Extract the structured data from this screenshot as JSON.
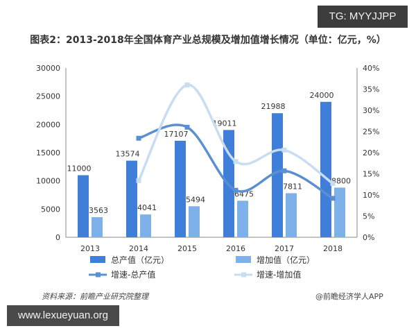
{
  "header": {
    "tag": "TG: MYYJJPP"
  },
  "footer": {
    "source": "资料来源：前瞻产业研究院整理",
    "brand": "@前瞻经济学人APP",
    "watermark": "www.lexueyuan.org"
  },
  "colors": {
    "bar_total": "#3f7fd9",
    "bar_added": "#7eb0ea",
    "line_total": "#5b8fd0",
    "line_added": "#c8dcf2",
    "axis": "#888888",
    "grid": "#e3e3e3"
  },
  "chart_data": {
    "type": "bar",
    "title": "图表2：2013-2018年全国体育产业总规模及增加值增长情况（单位：亿元，%）",
    "categories": [
      "2013",
      "2014",
      "2015",
      "2016",
      "2017",
      "2018"
    ],
    "series": [
      {
        "name": "总产值（亿元）",
        "type": "bar",
        "axis": "left",
        "values": [
          11000,
          13574,
          17107,
          19011,
          21988,
          24000
        ]
      },
      {
        "name": "增加值（亿元）",
        "type": "bar",
        "axis": "left",
        "values": [
          3563,
          4041,
          5494,
          6475,
          7811,
          8800
        ]
      },
      {
        "name": "增速-总产值",
        "type": "line",
        "axis": "right",
        "values": [
          null,
          23.4,
          26.0,
          11.1,
          15.7,
          9.2
        ]
      },
      {
        "name": "增速-增加值",
        "type": "line",
        "axis": "right",
        "values": [
          null,
          13.4,
          36.0,
          17.9,
          20.6,
          12.7
        ]
      }
    ],
    "y_left": {
      "range": [
        0,
        30000
      ],
      "ticks": [
        "0",
        "5000",
        "10000",
        "15000",
        "20000",
        "25000",
        "30000"
      ]
    },
    "y_right": {
      "range": [
        0,
        40
      ],
      "ticks": [
        "0%",
        "5%",
        "10%",
        "15%",
        "20%",
        "25%",
        "30%",
        "35%",
        "40%"
      ]
    },
    "grid": true,
    "legend_position": "bottom"
  }
}
